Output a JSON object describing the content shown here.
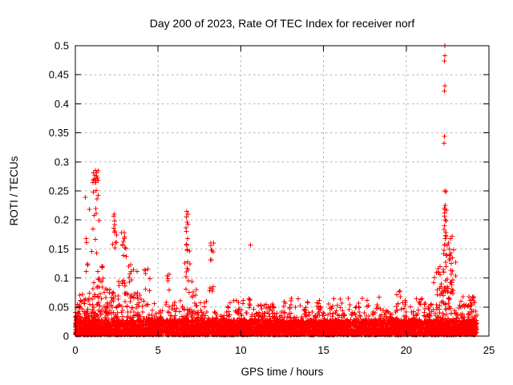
{
  "page": {
    "background_color": "#ffffff"
  },
  "chart_data": {
    "type": "scatter",
    "title": "Day 200 of 2023, Rate Of TEC Index for receiver norf",
    "xlabel": "GPS time / hours",
    "ylabel": "ROTI / TECUs",
    "xlim": [
      0,
      25
    ],
    "ylim": [
      0,
      0.5
    ],
    "xticks": [
      0,
      5,
      10,
      15,
      20,
      25
    ],
    "xtick_labels": [
      "0",
      "5",
      "10",
      "15",
      "20",
      "25"
    ],
    "yticks": [
      0,
      0.05,
      0.1,
      0.15,
      0.2,
      0.25,
      0.3,
      0.35,
      0.4,
      0.45,
      0.5
    ],
    "ytick_labels": [
      "0",
      "0.05",
      "0.1",
      "0.15",
      "0.2",
      "0.25",
      "0.3",
      "0.35",
      "0.4",
      "0.45",
      "0.5"
    ],
    "grid": true,
    "grid_style": "dashed",
    "legend": "none",
    "marker": "plus",
    "marker_color": "#ff0000",
    "axis_color": "#000000",
    "grid_color": "#b0b0b0",
    "data_time_range_hours": [
      0.0,
      24.27
    ],
    "notable_points": [
      [
        1.22,
        0.285
      ],
      [
        1.28,
        0.281
      ],
      [
        1.18,
        0.277
      ],
      [
        1.33,
        0.272
      ],
      [
        1.12,
        0.27
      ],
      [
        1.38,
        0.268
      ],
      [
        1.26,
        0.251
      ],
      [
        1.3,
        0.236
      ],
      [
        1.27,
        0.211
      ],
      [
        2.35,
        0.21
      ],
      [
        2.38,
        0.198
      ],
      [
        2.33,
        0.186
      ],
      [
        2.95,
        0.178
      ],
      [
        2.9,
        0.163
      ],
      [
        3.0,
        0.152
      ],
      [
        6.73,
        0.215
      ],
      [
        6.7,
        0.205
      ],
      [
        6.76,
        0.196
      ],
      [
        6.72,
        0.18
      ],
      [
        6.78,
        0.168
      ],
      [
        6.7,
        0.158
      ],
      [
        8.19,
        0.16
      ],
      [
        8.22,
        0.148
      ],
      [
        8.17,
        0.131
      ],
      [
        10.59,
        0.157
      ],
      [
        22.33,
        0.5
      ],
      [
        22.34,
        0.483
      ],
      [
        22.31,
        0.474
      ],
      [
        22.33,
        0.431
      ],
      [
        22.31,
        0.422
      ],
      [
        22.31,
        0.344
      ],
      [
        22.28,
        0.332
      ],
      [
        22.34,
        0.25
      ],
      [
        22.36,
        0.225
      ],
      [
        22.3,
        0.212
      ],
      [
        22.37,
        0.2
      ],
      [
        22.32,
        0.19
      ],
      [
        22.4,
        0.178
      ],
      [
        22.35,
        0.168
      ],
      [
        22.55,
        0.16
      ],
      [
        22.6,
        0.15
      ],
      [
        22.65,
        0.138
      ],
      [
        22.72,
        0.125
      ],
      [
        22.8,
        0.112
      ],
      [
        23.79,
        0.068
      ]
    ],
    "spike_clusters": [
      [
        0.6,
        1.7,
        0.1,
        0.255,
        20
      ],
      [
        1.02,
        1.42,
        0.262,
        0.286,
        9
      ],
      [
        2.25,
        2.5,
        0.15,
        0.212,
        9
      ],
      [
        2.75,
        3.1,
        0.135,
        0.19,
        8
      ],
      [
        3.15,
        3.75,
        0.09,
        0.135,
        9
      ],
      [
        4.1,
        4.55,
        0.075,
        0.12,
        7
      ],
      [
        5.5,
        5.8,
        0.07,
        0.112,
        5
      ],
      [
        6.6,
        6.95,
        0.068,
        0.216,
        17
      ],
      [
        7.0,
        7.35,
        0.065,
        0.1,
        6
      ],
      [
        8.1,
        8.35,
        0.055,
        0.162,
        10
      ],
      [
        9.0,
        10.4,
        0.045,
        0.062,
        8
      ],
      [
        10.45,
        10.7,
        0.05,
        0.065,
        5
      ],
      [
        11.2,
        12.2,
        0.045,
        0.065,
        7
      ],
      [
        12.5,
        13.6,
        0.045,
        0.066,
        7
      ],
      [
        14.0,
        16.5,
        0.045,
        0.065,
        10
      ],
      [
        16.6,
        18.4,
        0.048,
        0.068,
        8
      ],
      [
        19.4,
        19.9,
        0.05,
        0.078,
        7
      ],
      [
        20.2,
        21.5,
        0.05,
        0.068,
        8
      ],
      [
        21.6,
        22.15,
        0.07,
        0.13,
        11
      ],
      [
        22.25,
        22.45,
        0.13,
        0.255,
        15
      ],
      [
        22.45,
        23.05,
        0.08,
        0.172,
        19
      ],
      [
        23.3,
        24.2,
        0.05,
        0.07,
        8
      ]
    ],
    "dense_bands": [
      [
        0.0,
        0.5,
        0.08,
        50
      ],
      [
        0.5,
        1.0,
        0.09,
        55
      ],
      [
        1.0,
        1.75,
        0.1,
        80
      ],
      [
        1.75,
        2.3,
        0.085,
        50
      ],
      [
        2.3,
        3.35,
        0.1,
        100
      ],
      [
        3.35,
        3.9,
        0.08,
        45
      ],
      [
        3.9,
        4.6,
        0.07,
        45
      ],
      [
        4.6,
        5.4,
        0.058,
        40
      ],
      [
        5.4,
        6.15,
        0.062,
        40
      ],
      [
        6.15,
        7.1,
        0.068,
        55
      ],
      [
        7.1,
        7.7,
        0.058,
        30
      ],
      [
        7.7,
        8.45,
        0.06,
        40
      ],
      [
        8.45,
        9.5,
        0.048,
        40
      ],
      [
        9.5,
        10.35,
        0.052,
        35
      ],
      [
        10.35,
        11.15,
        0.056,
        35
      ],
      [
        11.15,
        12.35,
        0.052,
        45
      ],
      [
        12.35,
        13.25,
        0.056,
        38
      ],
      [
        13.25,
        14.25,
        0.056,
        40
      ],
      [
        14.25,
        15.45,
        0.058,
        45
      ],
      [
        15.45,
        16.65,
        0.058,
        45
      ],
      [
        16.65,
        17.85,
        0.052,
        45
      ],
      [
        17.85,
        18.65,
        0.062,
        35
      ],
      [
        18.65,
        19.45,
        0.052,
        30
      ],
      [
        19.45,
        20.05,
        0.068,
        28
      ],
      [
        20.05,
        20.95,
        0.058,
        35
      ],
      [
        20.95,
        21.75,
        0.062,
        35
      ],
      [
        21.75,
        22.2,
        0.09,
        30
      ],
      [
        22.2,
        22.5,
        0.135,
        35
      ],
      [
        22.5,
        23.05,
        0.095,
        35
      ],
      [
        23.05,
        23.65,
        0.062,
        28
      ],
      [
        23.65,
        24.27,
        0.068,
        45
      ]
    ],
    "baseline_floors": [
      {
        "t": [
          0.0,
          24.27
        ],
        "y": [
          0.002,
          0.028
        ],
        "skew": 1.0,
        "n": 3400
      },
      {
        "t": [
          0.0,
          24.27
        ],
        "y": [
          0.002,
          0.042
        ],
        "skew": 2.0,
        "n": 1000
      }
    ]
  }
}
